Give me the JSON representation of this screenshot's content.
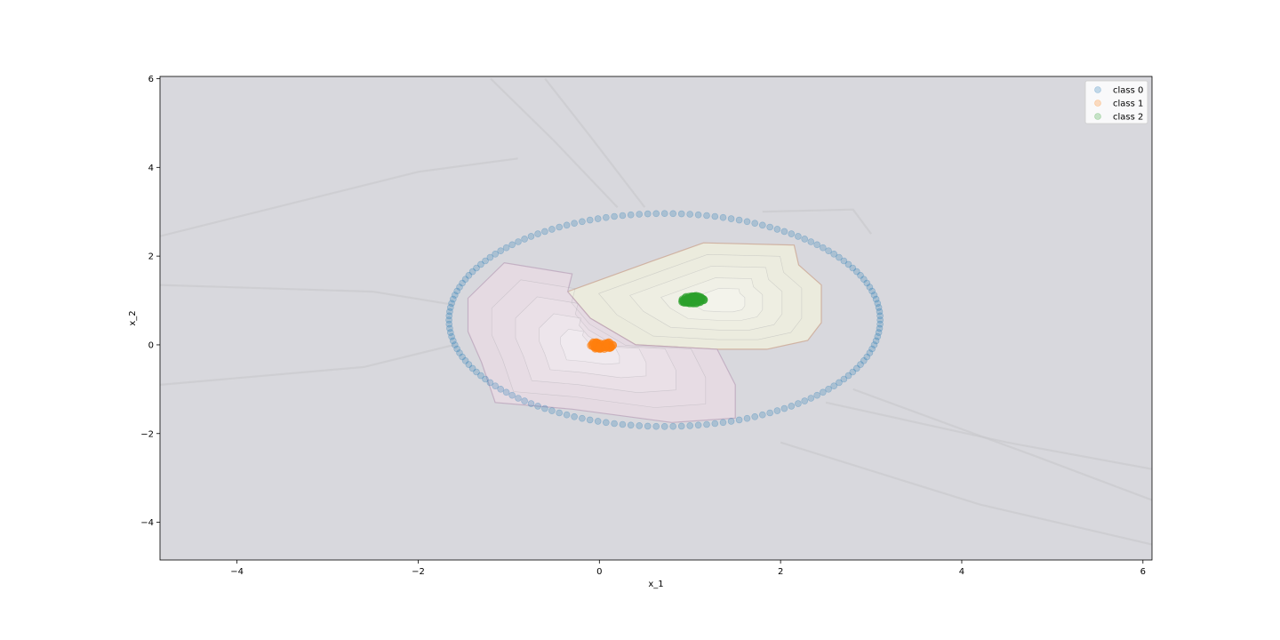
{
  "chart_data": {
    "type": "scatter",
    "title": "",
    "xlabel": "x_1",
    "ylabel": "x_2",
    "xlim": [
      -4.85,
      6.1
    ],
    "ylim": [
      -4.85,
      6.05
    ],
    "xticks": [
      -4,
      -2,
      0,
      2,
      4,
      6
    ],
    "yticks": [
      -4,
      -2,
      0,
      2,
      4,
      6
    ],
    "xtick_labels": [
      "−4",
      "−2",
      "0",
      "2",
      "4",
      "6"
    ],
    "ytick_labels": [
      "−4",
      "−2",
      "0",
      "2",
      "4",
      "6"
    ],
    "grid": false,
    "legend_position": "top-right",
    "background_color": "#d8d8dd",
    "decision_regions": [
      {
        "color": "#eeeedd",
        "outline": "#c9a08a",
        "polygon": [
          [
            -0.35,
            1.2
          ],
          [
            0.6,
            1.9
          ],
          [
            1.15,
            2.3
          ],
          [
            2.15,
            2.25
          ],
          [
            2.2,
            1.8
          ],
          [
            2.45,
            1.35
          ],
          [
            2.45,
            0.5
          ],
          [
            2.3,
            0.1
          ],
          [
            1.85,
            -0.1
          ],
          [
            1.3,
            -0.1
          ],
          [
            0.4,
            0.0
          ],
          [
            -0.1,
            0.6
          ]
        ]
      },
      {
        "color": "#e8dbe3",
        "outline": "#b8a0b8",
        "polygon": [
          [
            -1.45,
            1.05
          ],
          [
            -1.05,
            1.85
          ],
          [
            -0.3,
            1.6
          ],
          [
            -0.35,
            1.2
          ],
          [
            -0.1,
            0.6
          ],
          [
            0.4,
            0.0
          ],
          [
            1.3,
            -0.1
          ],
          [
            1.5,
            -0.9
          ],
          [
            1.5,
            -1.65
          ],
          [
            0.8,
            -1.75
          ],
          [
            -0.3,
            -1.45
          ],
          [
            -1.15,
            -1.3
          ],
          [
            -1.3,
            -0.4
          ],
          [
            -1.45,
            0.3
          ]
        ]
      }
    ],
    "ring": {
      "center": [
        0.72,
        0.56
      ],
      "radius_x": 2.38,
      "radius_y": 2.4,
      "count": 160
    },
    "series": [
      {
        "name": "class 0",
        "color": "#1f77b4",
        "marker": "circle",
        "alpha": 0.25,
        "shape": "ring"
      },
      {
        "name": "class 1",
        "color": "#ff7f0e",
        "marker": "circle",
        "alpha": 0.25,
        "shape": "cluster",
        "center": [
          0.02,
          -0.01
        ],
        "spread": 0.12,
        "count": 60
      },
      {
        "name": "class 2",
        "color": "#2ca02c",
        "marker": "circle",
        "alpha": 0.25,
        "shape": "cluster",
        "center": [
          1.02,
          1.02
        ],
        "spread": 0.12,
        "count": 60
      }
    ]
  }
}
